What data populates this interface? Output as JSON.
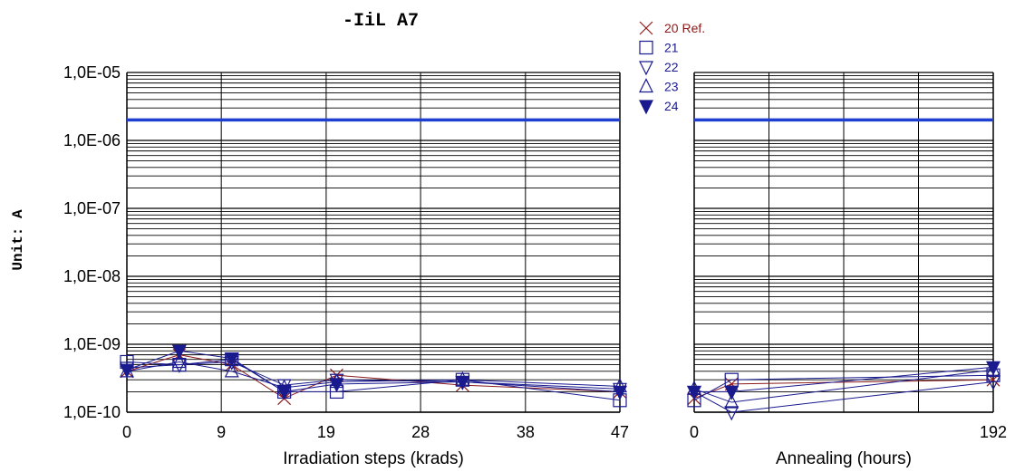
{
  "chart_data": {
    "type": "scatter",
    "title": "-IiL A7",
    "ylabel": "Unit: A",
    "y_scale": "log",
    "ylim": [
      1e-10,
      1e-05
    ],
    "y_ticks": [
      1e-10,
      1e-09,
      1e-08,
      1e-07,
      1e-06,
      1e-05
    ],
    "y_tick_labels": [
      "1,0E-10",
      "1,0E-09",
      "1,0E-08",
      "1,0E-07",
      "1,0E-06",
      "1,0E-05"
    ],
    "grid": true,
    "legend_position": "top-center",
    "colors": {
      "ref": "#8b1a1a",
      "series": "#1a1a8f",
      "limit": "#1f3fd0"
    },
    "limit_value": 2e-06,
    "panels": [
      {
        "id": "irradiation",
        "xlabel": "Irradiation steps   (krads)",
        "xlim": [
          0,
          47
        ],
        "x_ticks": [
          0,
          9,
          19,
          28,
          38,
          47
        ],
        "x_tick_labels": [
          "0",
          "9",
          "19",
          "28",
          "38",
          "47"
        ],
        "x": [
          0,
          5,
          10,
          15,
          20,
          32,
          47
        ],
        "series": [
          {
            "name": "20 Ref.",
            "marker": "x",
            "values": [
              4e-10,
              7e-10,
              5e-10,
              1.6e-10,
              3.5e-10,
              2.5e-10,
              2e-10
            ]
          },
          {
            "name": "21",
            "marker": "square",
            "values": [
              5.5e-10,
              5e-10,
              6e-10,
              2e-10,
              2e-10,
              3e-10,
              1.5e-10
            ]
          },
          {
            "name": "22",
            "marker": "triangle-down",
            "values": [
              4.5e-10,
              5e-10,
              5.5e-10,
              2.5e-10,
              3e-10,
              2.8e-10,
              2.2e-10
            ]
          },
          {
            "name": "23",
            "marker": "triangle-up",
            "values": [
              4e-10,
              5.5e-10,
              4e-10,
              2.3e-10,
              2.8e-10,
              3e-10,
              2.4e-10
            ]
          },
          {
            "name": "24",
            "marker": "triangle-down-filled",
            "values": [
              4.2e-10,
              8e-10,
              6.2e-10,
              2e-10,
              2.6e-10,
              2.8e-10,
              2e-10
            ]
          }
        ]
      },
      {
        "id": "annealing",
        "xlabel": "Annealing    (hours)",
        "xlim": [
          0,
          192
        ],
        "x_ticks": [
          0,
          192
        ],
        "x_tick_labels": [
          "0",
          "192"
        ],
        "x": [
          0,
          24,
          192
        ],
        "series": [
          {
            "name": "20 Ref.",
            "marker": "x",
            "values": [
              1.6e-10,
              2.6e-10,
              3e-10
            ]
          },
          {
            "name": "21",
            "marker": "square",
            "values": [
              1.5e-10,
              3e-10,
              3.5e-10
            ]
          },
          {
            "name": "22",
            "marker": "triangle-down",
            "values": [
              2e-10,
              1e-10,
              2.8e-10
            ]
          },
          {
            "name": "23",
            "marker": "triangle-up",
            "values": [
              2.2e-10,
              1.4e-10,
              4.2e-10
            ]
          },
          {
            "name": "24",
            "marker": "triangle-down-filled",
            "values": [
              2e-10,
              2e-10,
              4.6e-10
            ]
          }
        ]
      }
    ]
  }
}
